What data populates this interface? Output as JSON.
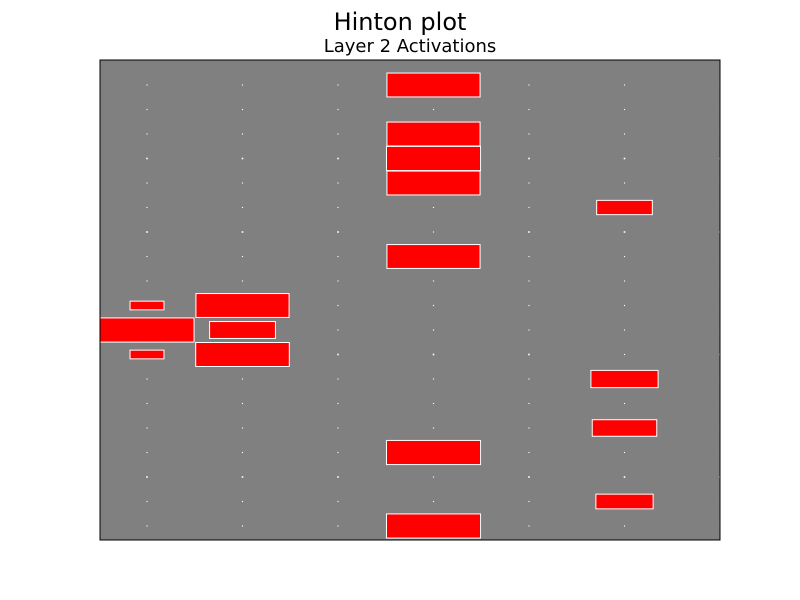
{
  "chart_data": {
    "type": "heatmap",
    "style": "hinton",
    "title": "Hinton plot",
    "subtitle": "Layer 2 Activations",
    "xlabel": "",
    "ylabel": "",
    "grid": false,
    "n_cols": 7,
    "n_rows": 20,
    "max_abs_weight": 1.0,
    "colors": {
      "background": "#808080",
      "positive": "#ff0000",
      "edge": "#ffffff",
      "dot": "#ffffff",
      "axes": "#000000"
    },
    "cells": [
      {
        "col": 3,
        "row": 0,
        "value": 0.98
      },
      {
        "col": 3,
        "row": 2,
        "value": 0.98
      },
      {
        "col": 3,
        "row": 3,
        "value": 1.0
      },
      {
        "col": 3,
        "row": 4,
        "value": 0.98
      },
      {
        "col": 3,
        "row": 7,
        "value": 0.98
      },
      {
        "col": 3,
        "row": 15,
        "value": 1.0
      },
      {
        "col": 3,
        "row": 18,
        "value": 1.0
      },
      {
        "col": 5,
        "row": 5,
        "value": 0.35
      },
      {
        "col": 5,
        "row": 12,
        "value": 0.51
      },
      {
        "col": 5,
        "row": 14,
        "value": 0.47
      },
      {
        "col": 5,
        "row": 17,
        "value": 0.37
      },
      {
        "col": 0,
        "row": 9,
        "value": 0.13
      },
      {
        "col": 0,
        "row": 10,
        "value": 1.0
      },
      {
        "col": 0,
        "row": 11,
        "value": 0.13
      },
      {
        "col": 1,
        "row": 9,
        "value": 0.98
      },
      {
        "col": 1,
        "row": 10,
        "value": 0.49
      },
      {
        "col": 1,
        "row": 11,
        "value": 0.99
      }
    ],
    "dots": [
      {
        "col": 0,
        "row": 3,
        "value": 0.02
      },
      {
        "col": 1,
        "row": 3,
        "value": 0.02
      },
      {
        "col": 2,
        "row": 3,
        "value": 0.02
      },
      {
        "col": 4,
        "row": 3,
        "value": 0.02
      },
      {
        "col": 5,
        "row": 3,
        "value": 0.02
      },
      {
        "col": 6,
        "row": 3,
        "value": 0.02
      },
      {
        "col": 0,
        "row": 6,
        "value": 0.02
      },
      {
        "col": 1,
        "row": 6,
        "value": 0.02
      },
      {
        "col": 2,
        "row": 6,
        "value": 0.02
      },
      {
        "col": 4,
        "row": 6,
        "value": 0.02
      },
      {
        "col": 5,
        "row": 6,
        "value": 0.02
      },
      {
        "col": 6,
        "row": 6,
        "value": 0.02
      },
      {
        "col": 2,
        "row": 11,
        "value": 0.02
      },
      {
        "col": 3,
        "row": 11,
        "value": 0.02
      },
      {
        "col": 4,
        "row": 11,
        "value": 0.02
      },
      {
        "col": 6,
        "row": 11,
        "value": 0.02
      },
      {
        "col": 0,
        "row": 16,
        "value": 0.02
      },
      {
        "col": 1,
        "row": 16,
        "value": 0.02
      },
      {
        "col": 2,
        "row": 16,
        "value": 0.02
      },
      {
        "col": 4,
        "row": 16,
        "value": 0.02
      },
      {
        "col": 5,
        "row": 16,
        "value": 0.02
      },
      {
        "col": 6,
        "row": 16,
        "value": 0.02
      }
    ],
    "small_dot_value": 0.01
  }
}
